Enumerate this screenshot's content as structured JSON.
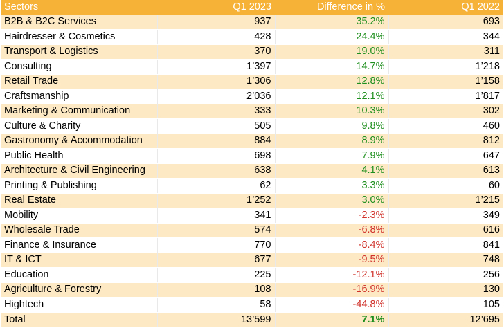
{
  "chart_data": {
    "type": "table",
    "columns": [
      "Sectors",
      "Q1 2023",
      "Difference in %",
      "Q1 2022"
    ],
    "rows": [
      {
        "sector": "B2B & B2C Services",
        "q1_2023": "937",
        "diff": "35.2%",
        "q1_2022": "693",
        "sign": "pos"
      },
      {
        "sector": "Hairdresser & Cosmetics",
        "q1_2023": "428",
        "diff": "24.4%",
        "q1_2022": "344",
        "sign": "pos"
      },
      {
        "sector": "Transport & Logistics",
        "q1_2023": "370",
        "diff": "19.0%",
        "q1_2022": "311",
        "sign": "pos"
      },
      {
        "sector": "Consulting",
        "q1_2023": "1’397",
        "diff": "14.7%",
        "q1_2022": "1’218",
        "sign": "pos"
      },
      {
        "sector": "Retail Trade",
        "q1_2023": "1’306",
        "diff": "12.8%",
        "q1_2022": "1’158",
        "sign": "pos"
      },
      {
        "sector": "Craftsmanship",
        "q1_2023": "2’036",
        "diff": "12.1%",
        "q1_2022": "1’817",
        "sign": "pos"
      },
      {
        "sector": "Marketing & Communication",
        "q1_2023": "333",
        "diff": "10.3%",
        "q1_2022": "302",
        "sign": "pos"
      },
      {
        "sector": "Culture & Charity",
        "q1_2023": "505",
        "diff": "9.8%",
        "q1_2022": "460",
        "sign": "pos"
      },
      {
        "sector": "Gastronomy & Accommodation",
        "q1_2023": "884",
        "diff": "8.9%",
        "q1_2022": "812",
        "sign": "pos"
      },
      {
        "sector": "Public Health",
        "q1_2023": "698",
        "diff": "7.9%",
        "q1_2022": "647",
        "sign": "pos"
      },
      {
        "sector": "Architecture & Civil Engineering",
        "q1_2023": "638",
        "diff": "4.1%",
        "q1_2022": "613",
        "sign": "pos"
      },
      {
        "sector": "Printing & Publishing",
        "q1_2023": "62",
        "diff": "3.3%",
        "q1_2022": "60",
        "sign": "pos"
      },
      {
        "sector": "Real Estate",
        "q1_2023": "1’252",
        "diff": "3.0%",
        "q1_2022": "1’215",
        "sign": "pos"
      },
      {
        "sector": "Mobility",
        "q1_2023": "341",
        "diff": "-2.3%",
        "q1_2022": "349",
        "sign": "neg"
      },
      {
        "sector": "Wholesale Trade",
        "q1_2023": "574",
        "diff": "-6.8%",
        "q1_2022": "616",
        "sign": "neg"
      },
      {
        "sector": "Finance & Insurance",
        "q1_2023": "770",
        "diff": "-8.4%",
        "q1_2022": "841",
        "sign": "neg"
      },
      {
        "sector": "IT & ICT",
        "q1_2023": "677",
        "diff": "-9.5%",
        "q1_2022": "748",
        "sign": "neg"
      },
      {
        "sector": "Education",
        "q1_2023": "225",
        "diff": "-12.1%",
        "q1_2022": "256",
        "sign": "neg"
      },
      {
        "sector": "Agriculture & Forestry",
        "q1_2023": "108",
        "diff": "-16.9%",
        "q1_2022": "130",
        "sign": "neg"
      },
      {
        "sector": "Hightech",
        "q1_2023": "58",
        "diff": "-44.8%",
        "q1_2022": "105",
        "sign": "neg"
      }
    ],
    "total": {
      "label": "Total",
      "q1_2023": "13’599",
      "diff": "7.1%",
      "q1_2022": "12’695"
    },
    "colors": {
      "header": "#f6b137",
      "band": "#fde9c4",
      "positive": "#1e8f1e",
      "negative": "#d0322b"
    }
  }
}
